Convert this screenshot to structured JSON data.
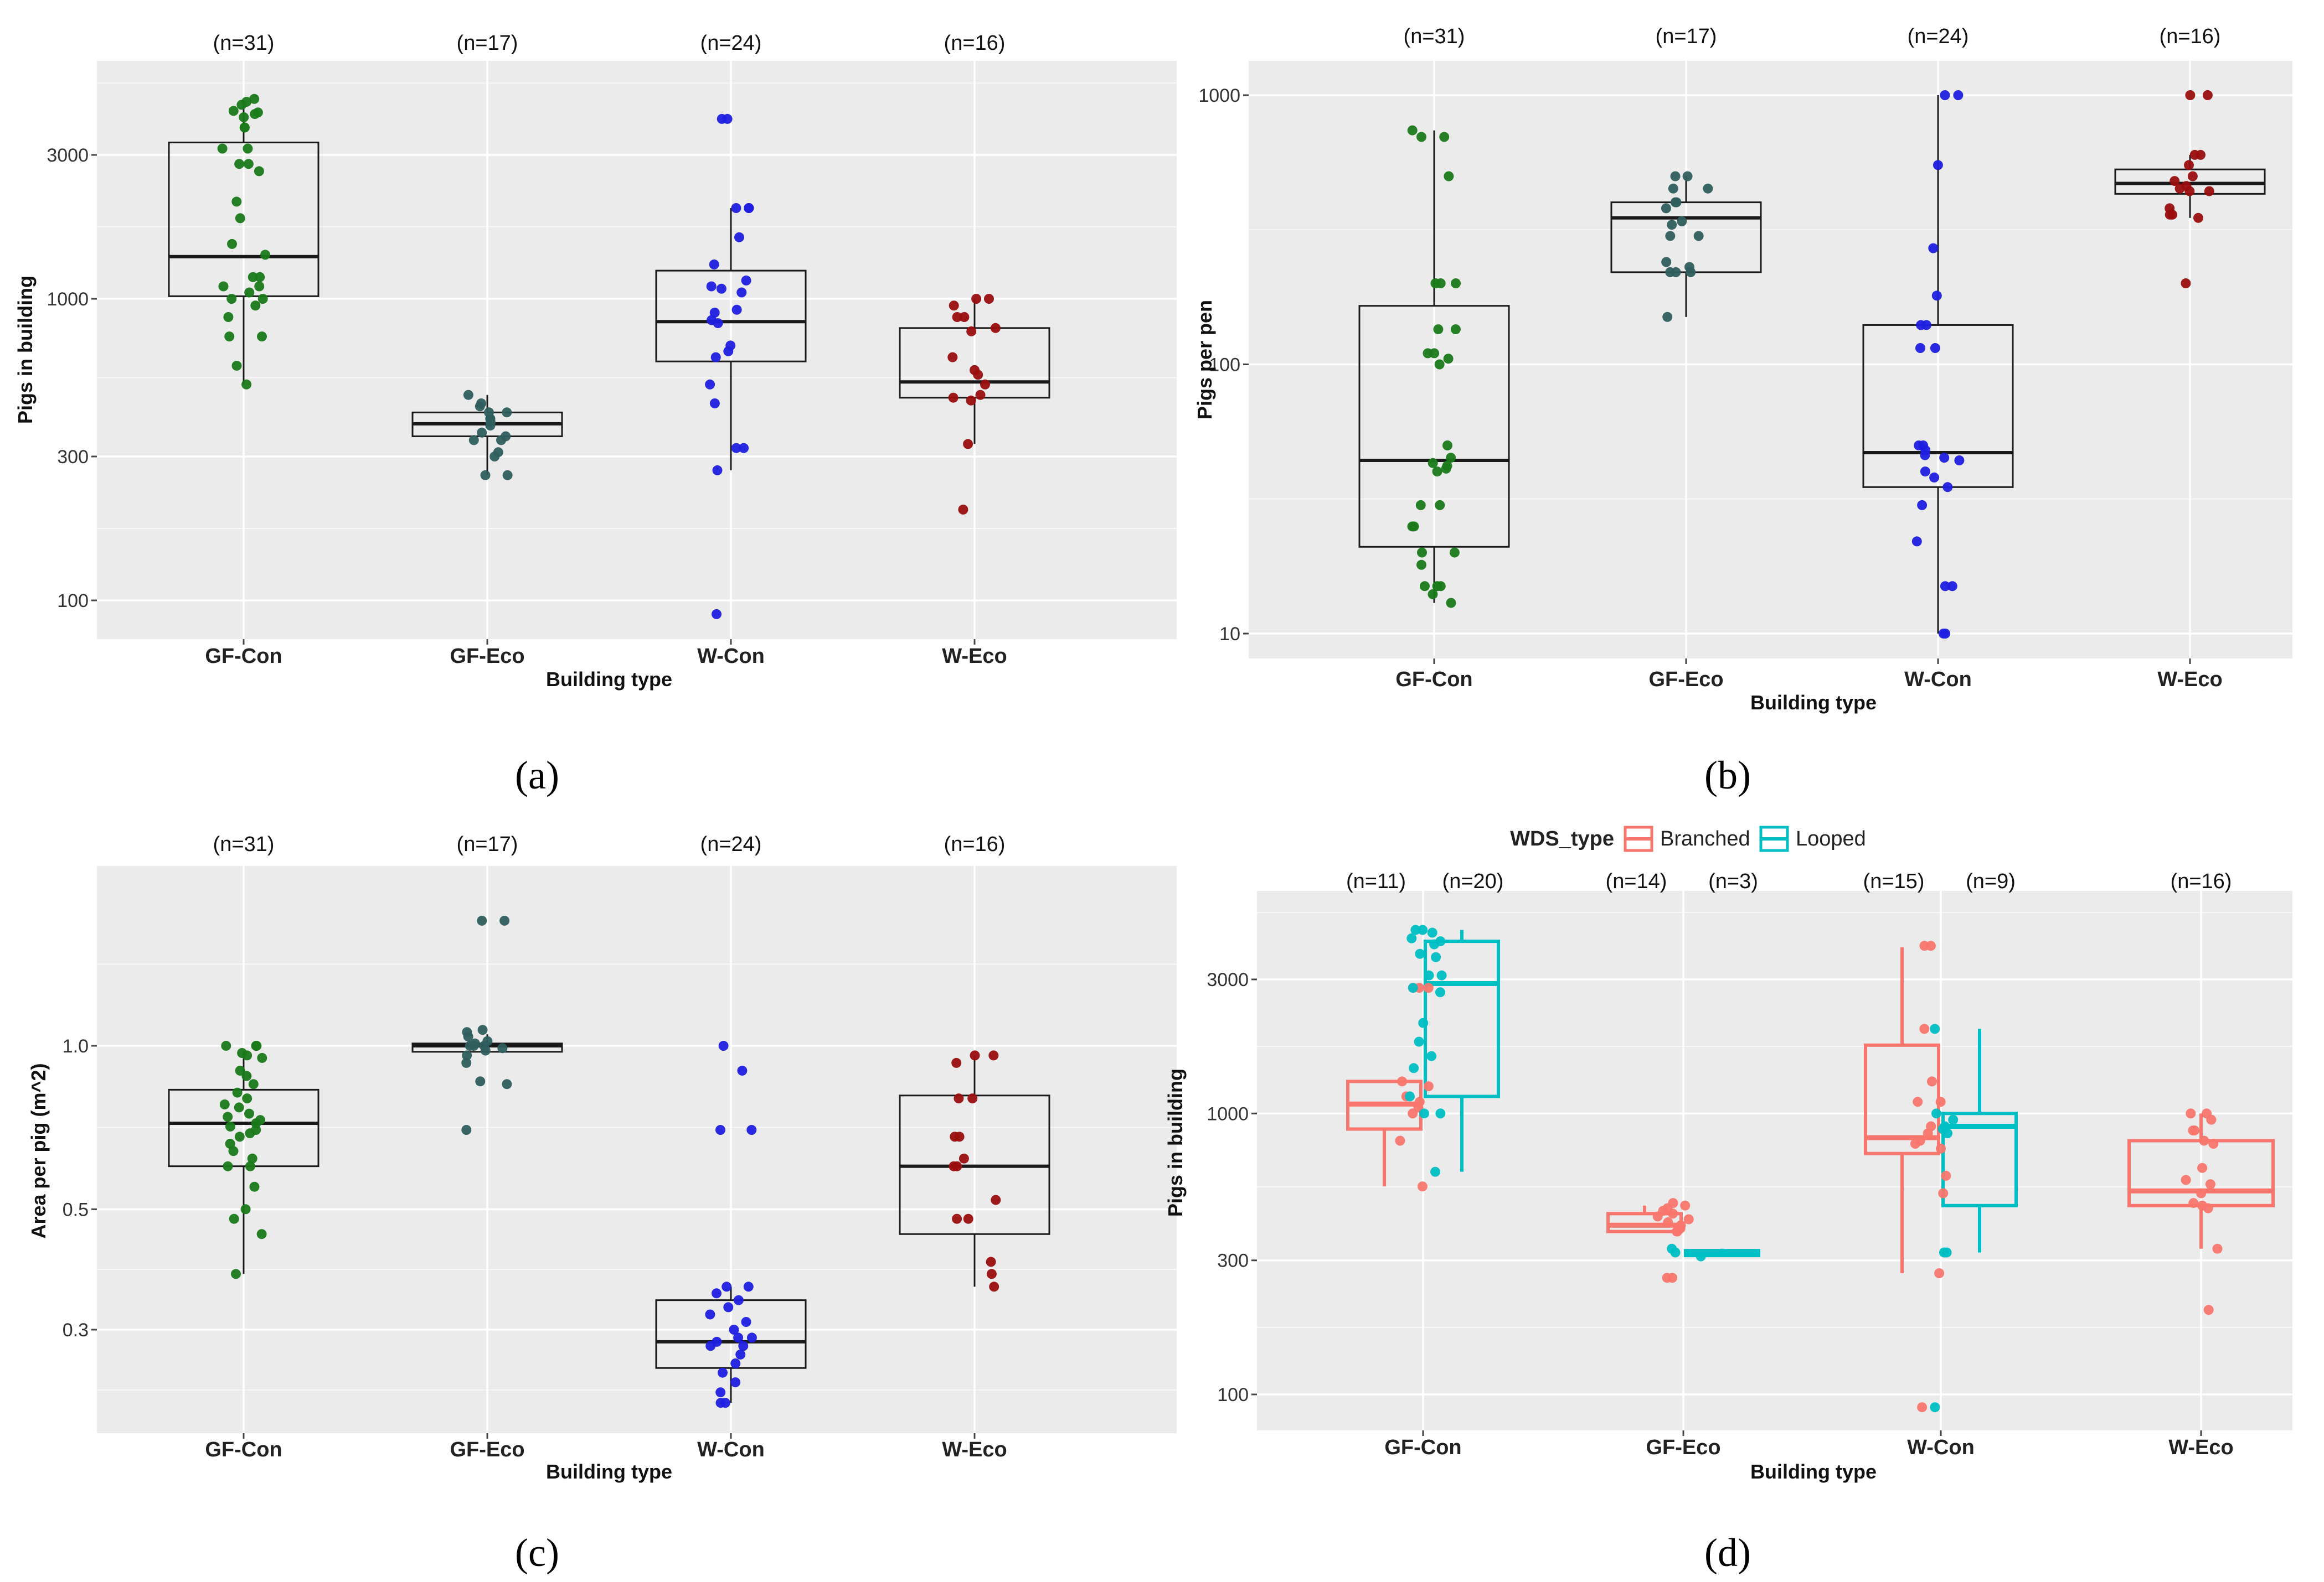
{
  "colors": {
    "GF-Con": "#1a7a1a",
    "GF-Eco": "#2f5e5e",
    "W-Con": "#1f1fe0",
    "W-Eco": "#9a0e0e",
    "Branched": "#f8766d",
    "Looped": "#00bfc4",
    "panel_bg": "#ebebeb",
    "grid": "#ffffff"
  },
  "panel_labels": [
    "(a)",
    "(b)",
    "(c)",
    "(d)"
  ],
  "chart_data": [
    {
      "type": "box",
      "panel": "(a)",
      "xlabel": "Building type",
      "ylabel": "Pigs in building",
      "scale": "log",
      "ylim": [
        80,
        5000
      ],
      "yticks": [
        100,
        300,
        1000,
        3000
      ],
      "yticklabels": [
        "100",
        "300",
        "1000",
        "3000"
      ],
      "categories": [
        "GF-Con",
        "GF-Eco",
        "W-Con",
        "W-Eco"
      ],
      "n_labels": [
        "(n=31)",
        "(n=17)",
        "(n=24)",
        "(n=16)"
      ],
      "boxes": [
        {
          "min": 520,
          "q1": 1020,
          "median": 1380,
          "q3": 3300,
          "max": 4500
        },
        {
          "min": 260,
          "q1": 350,
          "median": 385,
          "q3": 420,
          "max": 480
        },
        {
          "min": 270,
          "q1": 620,
          "median": 840,
          "q3": 1240,
          "max": 2000
        },
        {
          "min": 330,
          "q1": 470,
          "median": 530,
          "q3": 800,
          "max": 1000
        }
      ],
      "points": [
        [
          4600,
          4500,
          4400,
          4200,
          4150,
          4100,
          4000,
          3700,
          3700,
          3150,
          3150,
          2800,
          2800,
          2650,
          2100,
          1850,
          1520,
          1400,
          1180,
          1180,
          1100,
          1100,
          1050,
          1000,
          1000,
          950,
          870,
          750,
          750,
          600,
          520
        ],
        [
          480,
          450,
          440,
          420,
          420,
          400,
          400,
          390,
          380,
          360,
          350,
          340,
          340,
          310,
          300,
          260,
          260
        ],
        [
          3950,
          3950,
          2000,
          2000,
          2000,
          1600,
          1300,
          1150,
          1100,
          1080,
          1050,
          920,
          900,
          850,
          830,
          700,
          670,
          640,
          520,
          450,
          320,
          320,
          270,
          90
        ],
        [
          1000,
          1000,
          950,
          870,
          870,
          800,
          780,
          640,
          580,
          560,
          520,
          480,
          470,
          460,
          330,
          200
        ]
      ]
    },
    {
      "type": "box",
      "panel": "(b)",
      "xlabel": "Building type",
      "ylabel": "Pigs per pen",
      "scale": "log",
      "ylim": [
        8.5,
        1200
      ],
      "yticks": [
        10,
        100,
        1000
      ],
      "yticklabels": [
        "10",
        "100",
        "1000"
      ],
      "categories": [
        "GF-Con",
        "GF-Eco",
        "W-Con",
        "W-Eco"
      ],
      "n_labels": [
        "(n=31)",
        "(n=17)",
        "(n=24)",
        "(n=16)"
      ],
      "boxes": [
        {
          "min": 13,
          "q1": 21,
          "median": 44,
          "q3": 165,
          "max": 740
        },
        {
          "min": 150,
          "q1": 220,
          "median": 350,
          "q3": 400,
          "max": 500
        },
        {
          "min": 10,
          "q1": 35,
          "median": 47,
          "q3": 140,
          "max": 1000
        },
        {
          "min": 350,
          "q1": 430,
          "median": 470,
          "q3": 530,
          "max": 600
        }
      ],
      "points": [
        [
          740,
          700,
          700,
          500,
          200,
          200,
          200,
          135,
          135,
          110,
          110,
          105,
          100,
          50,
          45,
          43,
          42,
          41,
          40,
          30,
          30,
          25,
          25,
          20,
          20,
          18,
          15,
          15,
          15,
          14,
          13
        ],
        [
          500,
          500,
          450,
          450,
          400,
          400,
          380,
          340,
          330,
          300,
          300,
          240,
          230,
          220,
          220,
          220,
          150
        ],
        [
          1000,
          1000,
          550,
          270,
          180,
          140,
          140,
          115,
          115,
          50,
          50,
          48,
          46,
          45,
          44,
          40,
          38,
          35,
          30,
          22,
          15,
          15,
          10,
          10
        ],
        [
          1000,
          1000,
          600,
          600,
          550,
          500,
          480,
          460,
          450,
          440,
          440,
          380,
          360,
          360,
          350,
          200
        ]
      ]
    },
    {
      "type": "box",
      "panel": "(c)",
      "xlabel": "Building type",
      "ylabel": "Area per pig (m^2)",
      "scale": "log",
      "ylim": [
        0.19,
        2.0
      ],
      "yticks": [
        0.3,
        0.5,
        1.0
      ],
      "yticklabels": [
        "0.3",
        "0.5",
        "1.0"
      ],
      "categories": [
        "GF-Con",
        "GF-Eco",
        "W-Con",
        "W-Eco"
      ],
      "n_labels": [
        "(n=31)",
        "(n=17)",
        "(n=24)",
        "(n=16)"
      ],
      "boxes": [
        {
          "min": 0.38,
          "q1": 0.6,
          "median": 0.72,
          "q3": 0.83,
          "max": 0.98
        },
        {
          "min": 0.97,
          "q1": 0.975,
          "median": 1.0,
          "q3": 1.01,
          "max": 1.05
        },
        {
          "min": 0.22,
          "q1": 0.255,
          "median": 0.285,
          "q3": 0.34,
          "max": 0.36
        },
        {
          "min": 0.36,
          "q1": 0.45,
          "median": 0.6,
          "q3": 0.81,
          "max": 0.96
        }
      ],
      "points": [
        [
          1.0,
          1.0,
          1.0,
          0.97,
          0.96,
          0.95,
          0.9,
          0.88,
          0.85,
          0.82,
          0.8,
          0.78,
          0.77,
          0.75,
          0.74,
          0.73,
          0.72,
          0.71,
          0.7,
          0.69,
          0.68,
          0.66,
          0.64,
          0.62,
          0.6,
          0.6,
          0.55,
          0.5,
          0.48,
          0.45,
          0.38
        ],
        [
          1.7,
          1.7,
          1.07,
          1.06,
          1.04,
          1.02,
          1.01,
          1.0,
          1.0,
          1.0,
          0.99,
          0.98,
          0.96,
          0.93,
          0.86,
          0.85,
          0.7
        ],
        [
          1.0,
          0.9,
          0.7,
          0.7,
          0.36,
          0.36,
          0.35,
          0.34,
          0.33,
          0.32,
          0.31,
          0.3,
          0.29,
          0.29,
          0.285,
          0.28,
          0.28,
          0.27,
          0.26,
          0.25,
          0.24,
          0.23,
          0.22,
          0.22
        ],
        [
          0.96,
          0.96,
          0.93,
          0.8,
          0.8,
          0.68,
          0.68,
          0.62,
          0.6,
          0.6,
          0.52,
          0.48,
          0.48,
          0.4,
          0.38,
          0.36
        ]
      ]
    },
    {
      "type": "box",
      "panel": "(d)",
      "xlabel": "Building type",
      "ylabel": "Pigs in building",
      "scale": "log",
      "ylim": [
        80,
        5000
      ],
      "yticks": [
        100,
        300,
        1000,
        3000
      ],
      "yticklabels": [
        "100",
        "300",
        "1000",
        "3000"
      ],
      "categories": [
        "GF-Con",
        "GF-Eco",
        "W-Con",
        "W-Eco"
      ],
      "legend": {
        "title": "WDS_type",
        "entries": [
          "Branched",
          "Looped"
        ],
        "position": "top"
      },
      "groups": [
        {
          "category": "GF-Con",
          "series": "Branched",
          "n_label": "(n=11)",
          "min": 550,
          "q1": 880,
          "median": 1080,
          "q3": 1300,
          "max": 1300,
          "points": [
            2800,
            2800,
            2800,
            1300,
            1250,
            1150,
            1100,
            1050,
            1000,
            800,
            550
          ]
        },
        {
          "category": "GF-Con",
          "series": "Looped",
          "n_label": "(n=20)",
          "min": 620,
          "q1": 1150,
          "median": 2900,
          "q3": 4100,
          "max": 4500,
          "points": [
            4500,
            4500,
            4400,
            4200,
            4100,
            4000,
            3700,
            3600,
            3100,
            3100,
            2800,
            2700,
            2100,
            1800,
            1600,
            1450,
            1150,
            1000,
            1000,
            620
          ]
        },
        {
          "category": "GF-Eco",
          "series": "Branched",
          "n_label": "(n=14)",
          "min": 380,
          "q1": 380,
          "median": 400,
          "q3": 440,
          "max": 470,
          "points": [
            480,
            470,
            460,
            450,
            440,
            430,
            420,
            410,
            400,
            390,
            380,
            380,
            260,
            260
          ]
        },
        {
          "category": "GF-Eco",
          "series": "Looped",
          "n_label": "(n=3)",
          "min": 310,
          "q1": 312,
          "median": 318,
          "q3": 325,
          "max": 330,
          "points": [
            330,
            320,
            310
          ]
        },
        {
          "category": "W-Con",
          "series": "Branched",
          "n_label": "(n=15)",
          "min": 270,
          "q1": 720,
          "median": 820,
          "q3": 1750,
          "max": 3900,
          "points": [
            3950,
            3950,
            2000,
            1300,
            1100,
            1100,
            900,
            850,
            800,
            780,
            750,
            600,
            520,
            270,
            90
          ]
        },
        {
          "category": "W-Con",
          "series": "Looped",
          "n_label": "(n=9)",
          "min": 320,
          "q1": 470,
          "median": 900,
          "q3": 1000,
          "max": 2000,
          "points": [
            2000,
            1000,
            950,
            900,
            880,
            850,
            320,
            320,
            90
          ]
        },
        {
          "category": "W-Eco",
          "series": "Branched",
          "n_label": "(n=16)",
          "min": 330,
          "q1": 470,
          "median": 530,
          "q3": 800,
          "max": 1000,
          "points": [
            1000,
            1000,
            950,
            870,
            870,
            800,
            780,
            640,
            580,
            560,
            520,
            480,
            470,
            460,
            330,
            200
          ]
        }
      ]
    }
  ]
}
